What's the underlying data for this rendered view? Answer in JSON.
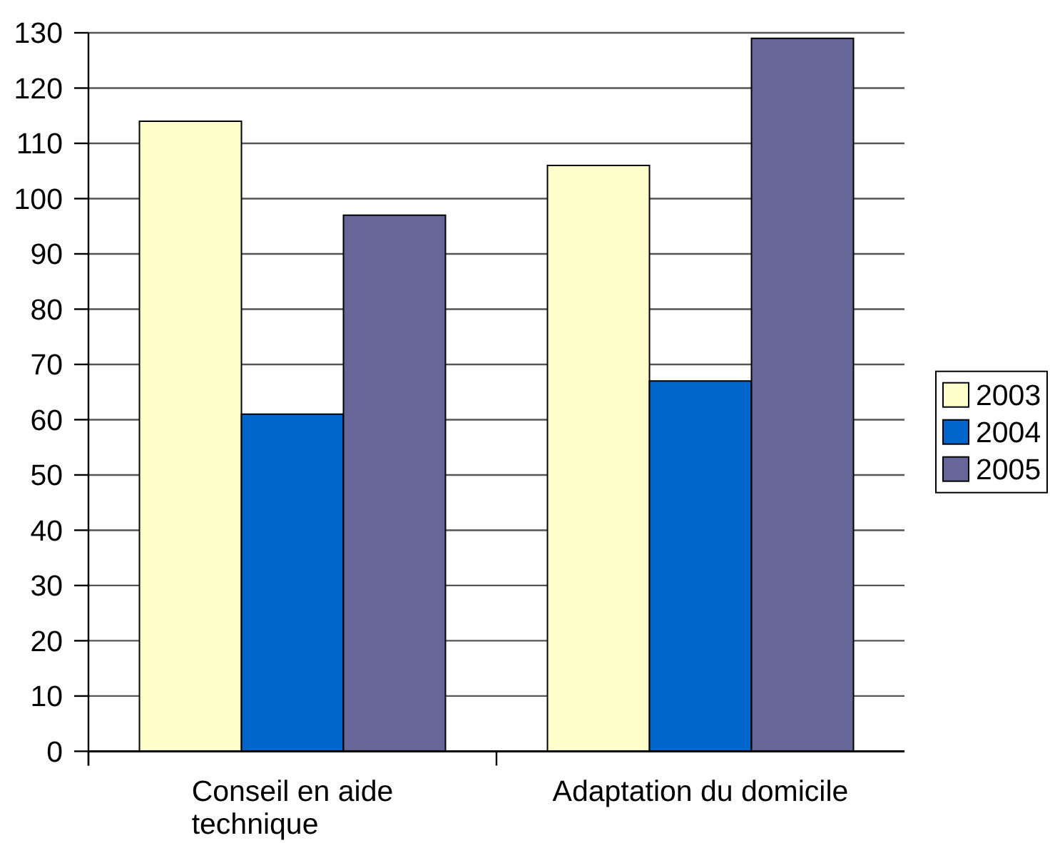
{
  "chart_data": {
    "type": "bar",
    "categories": [
      "Conseil en aide technique",
      "Adaptation du domicile"
    ],
    "series": [
      {
        "name": "2003",
        "color": "#ffffcc",
        "values": [
          114,
          106
        ]
      },
      {
        "name": "2004",
        "color": "#0066cc",
        "values": [
          61,
          67
        ]
      },
      {
        "name": "2005",
        "color": "#666699",
        "values": [
          97,
          129
        ]
      }
    ],
    "ylim": [
      0,
      130
    ],
    "yticks": [
      0,
      10,
      20,
      30,
      40,
      50,
      60,
      70,
      80,
      90,
      100,
      110,
      120,
      130
    ],
    "grid": "y",
    "legend": "right"
  }
}
